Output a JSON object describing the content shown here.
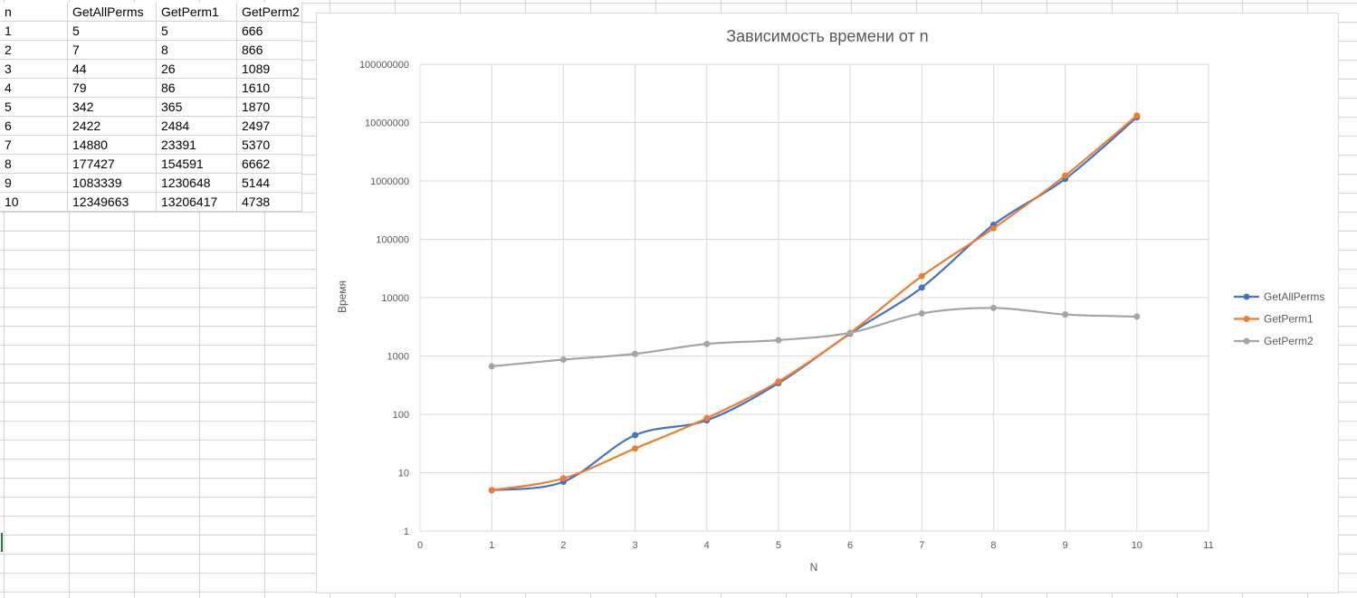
{
  "sheet": {
    "headers": [
      "n",
      "GetAllPerms",
      "GetPerm1",
      "GetPerm2"
    ],
    "rows": [
      [
        "1",
        "5",
        "5",
        "666"
      ],
      [
        "2",
        "7",
        "8",
        "866"
      ],
      [
        "3",
        "44",
        "26",
        "1089"
      ],
      [
        "4",
        "79",
        "86",
        "1610"
      ],
      [
        "5",
        "342",
        "365",
        "1870"
      ],
      [
        "6",
        "2422",
        "2484",
        "2497"
      ],
      [
        "7",
        "14880",
        "23391",
        "5370"
      ],
      [
        "8",
        "177427",
        "154591",
        "6662"
      ],
      [
        "9",
        "1083339",
        "1230648",
        "5144"
      ],
      [
        "10",
        "12349663",
        "13206417",
        "4738"
      ]
    ]
  },
  "chart_data": {
    "type": "scatter",
    "title": "Зависимость времени от n",
    "xlabel": "N",
    "ylabel": "Время",
    "xlim": [
      0,
      11
    ],
    "ylim": [
      1,
      100000000
    ],
    "yscale": "log",
    "x_ticks": [
      "0",
      "1",
      "2",
      "3",
      "4",
      "5",
      "6",
      "7",
      "8",
      "9",
      "10",
      "11"
    ],
    "y_ticks": [
      "1",
      "10",
      "100",
      "1000",
      "10000",
      "100000",
      "1000000",
      "10000000",
      "100000000"
    ],
    "grid": true,
    "smooth_lines": true,
    "legend": "right",
    "x": [
      1,
      2,
      3,
      4,
      5,
      6,
      7,
      8,
      9,
      10
    ],
    "series": [
      {
        "name": "GetAllPerms",
        "color": "#4472c4",
        "values": [
          5,
          7,
          44,
          79,
          342,
          2422,
          14880,
          177427,
          1083339,
          12349663
        ]
      },
      {
        "name": "GetPerm1",
        "color": "#ed7d31",
        "values": [
          5,
          8,
          26,
          86,
          365,
          2484,
          23391,
          154591,
          1230648,
          13206417
        ]
      },
      {
        "name": "GetPerm2",
        "color": "#a5a5a5",
        "values": [
          666,
          866,
          1089,
          1610,
          1870,
          2497,
          5370,
          6662,
          5144,
          4738
        ]
      }
    ]
  }
}
